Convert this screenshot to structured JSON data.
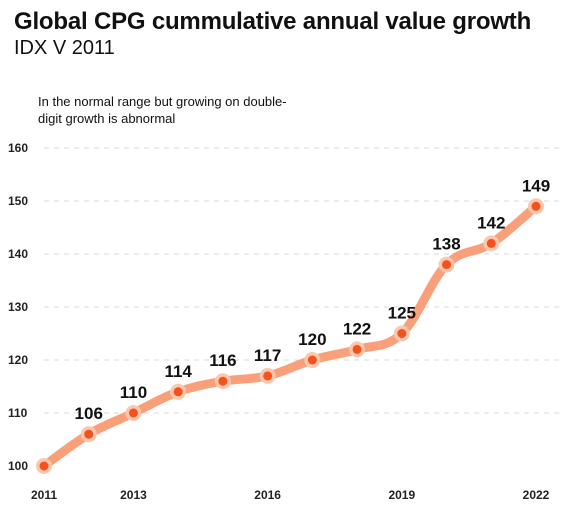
{
  "chart_data": {
    "type": "line",
    "title": "Global CPG cummulative annual value growth",
    "subtitle": "IDX V 2011",
    "annotation": "In the normal range but growing on double-digit growth is abnormal",
    "x": [
      2011,
      2012,
      2013,
      2014,
      2015,
      2016,
      2017,
      2018,
      2019,
      2020,
      2021,
      2022
    ],
    "x_tick_labels": [
      "2011",
      "2013",
      "2016",
      "2019",
      "2022"
    ],
    "series": [
      {
        "values": [
          100,
          106,
          110,
          114,
          116,
          117,
          120,
          122,
          125,
          138,
          142,
          149
        ],
        "data_labels": [
          "",
          "106",
          "110",
          "114",
          "116",
          "117",
          "120",
          "122",
          "125",
          "138",
          "142",
          "149"
        ]
      }
    ],
    "y_ticks": [
      100,
      110,
      120,
      130,
      140,
      150,
      160
    ],
    "ylim": [
      100,
      160
    ],
    "xlim": [
      2011,
      2022
    ],
    "grid": "horizontal dashed",
    "colors": {
      "line": "#F9A07A",
      "halo": "#FBC7AE",
      "marker": "#F4511E",
      "grid": "#D9D9D9"
    }
  }
}
